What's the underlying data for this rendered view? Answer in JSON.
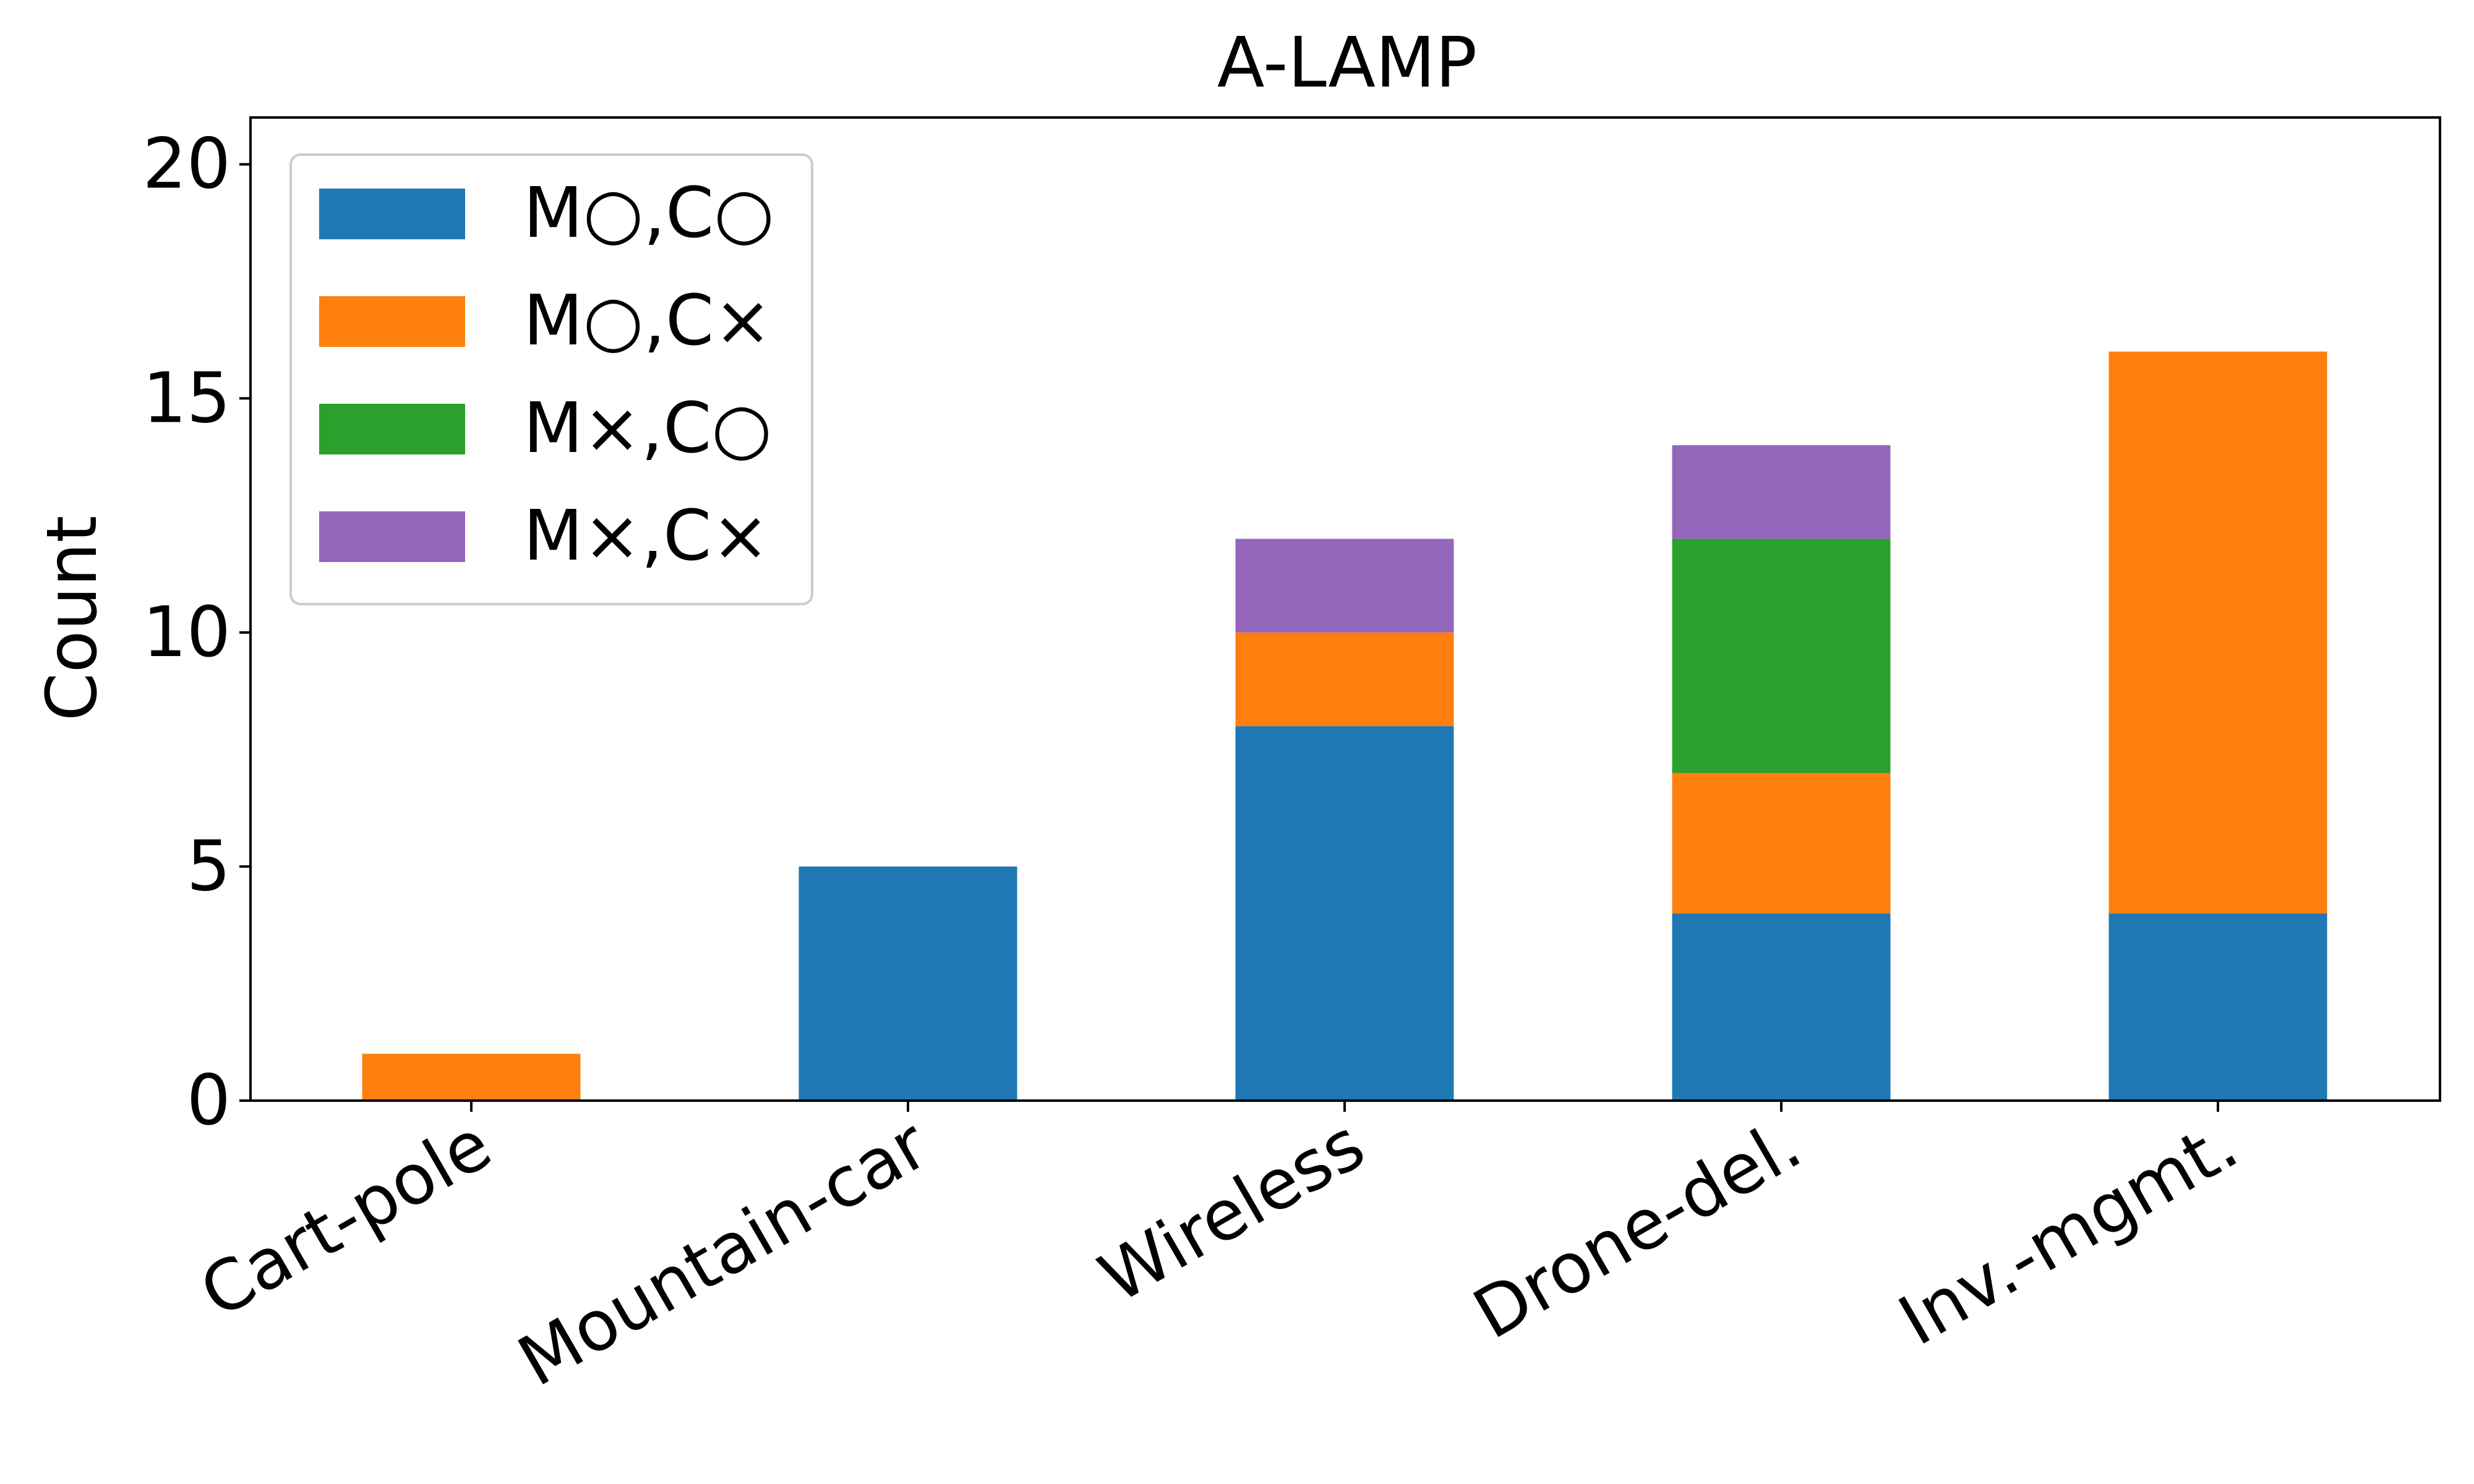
{
  "chart_data": {
    "type": "bar",
    "stacked": true,
    "title": "A-LAMP",
    "xlabel": "",
    "ylabel": "Count",
    "ylim": [
      0,
      21
    ],
    "yticks": [
      0,
      5,
      10,
      15,
      20
    ],
    "categories": [
      "Cart-pole",
      "Mountain-car",
      "Wireless",
      "Drone-del.",
      "Inv.-mgmt."
    ],
    "series": [
      {
        "name": "M○,C○",
        "color": "#1f77b4",
        "values": [
          0,
          5,
          8,
          4,
          4
        ]
      },
      {
        "name": "M○,C×",
        "color": "#ff7f0e",
        "values": [
          1,
          0,
          2,
          3,
          12
        ]
      },
      {
        "name": "M×,C○",
        "color": "#2ca02c",
        "values": [
          0,
          0,
          0,
          5,
          0
        ]
      },
      {
        "name": "M×,C×",
        "color": "#9467bd",
        "values": [
          0,
          0,
          2,
          2,
          0
        ]
      }
    ],
    "legend_position": "top-left",
    "grid": false
  }
}
